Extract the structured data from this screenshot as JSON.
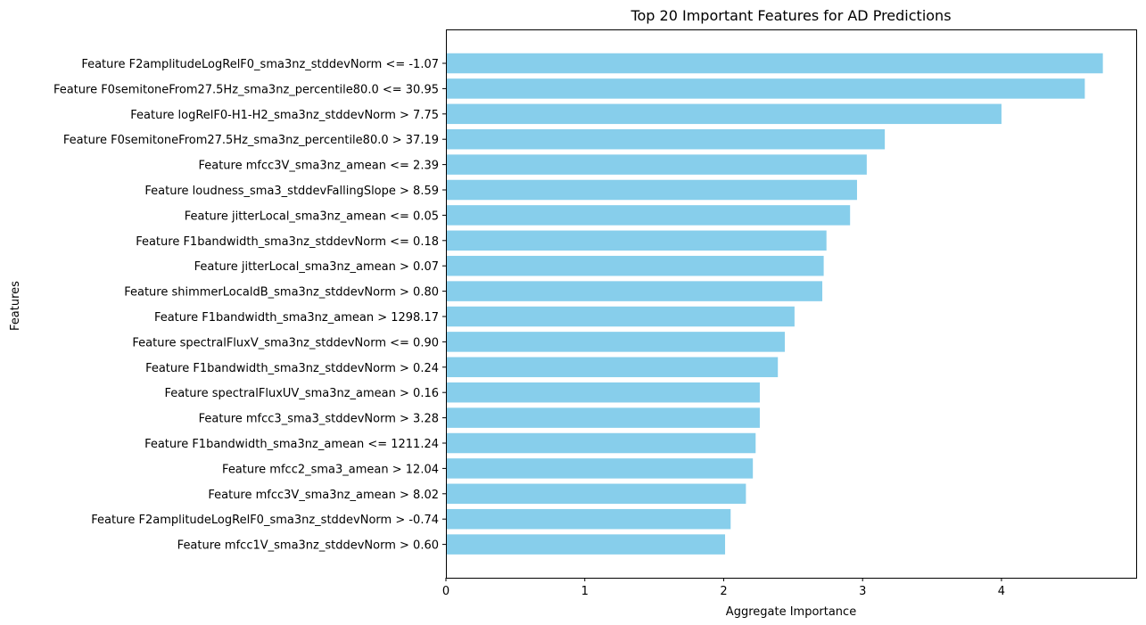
{
  "chart_data": {
    "type": "bar",
    "orientation": "horizontal",
    "title": "Top 20 Important Features for AD Predictions",
    "xlabel": "Aggregate Importance",
    "ylabel": "Features",
    "xlim": [
      0,
      4.97
    ],
    "xticks": [
      0,
      1,
      2,
      3,
      4
    ],
    "grid": false,
    "bar_color": "#87CEEB",
    "categories": [
      "Feature F2amplitudeLogRelF0_sma3nz_stddevNorm <= -1.07",
      "Feature F0semitoneFrom27.5Hz_sma3nz_percentile80.0 <= 30.95",
      "Feature logRelF0-H1-H2_sma3nz_stddevNorm > 7.75",
      "Feature F0semitoneFrom27.5Hz_sma3nz_percentile80.0 > 37.19",
      "Feature mfcc3V_sma3nz_amean <= 2.39",
      "Feature loudness_sma3_stddevFallingSlope > 8.59",
      "Feature jitterLocal_sma3nz_amean <= 0.05",
      "Feature F1bandwidth_sma3nz_stddevNorm <= 0.18",
      "Feature jitterLocal_sma3nz_amean > 0.07",
      "Feature shimmerLocaldB_sma3nz_stddevNorm > 0.80",
      "Feature F1bandwidth_sma3nz_amean > 1298.17",
      "Feature spectralFluxV_sma3nz_stddevNorm <= 0.90",
      "Feature F1bandwidth_sma3nz_stddevNorm > 0.24",
      "Feature spectralFluxUV_sma3nz_amean > 0.16",
      "Feature mfcc3_sma3_stddevNorm > 3.28",
      "Feature F1bandwidth_sma3nz_amean <= 1211.24",
      "Feature mfcc2_sma3_amean > 12.04",
      "Feature mfcc3V_sma3nz_amean > 8.02",
      "Feature F2amplitudeLogRelF0_sma3nz_stddevNorm > -0.74",
      "Feature mfcc1V_sma3nz_stddevNorm > 0.60"
    ],
    "values": [
      4.73,
      4.6,
      4.0,
      3.16,
      3.03,
      2.96,
      2.91,
      2.74,
      2.72,
      2.71,
      2.51,
      2.44,
      2.39,
      2.26,
      2.26,
      2.23,
      2.21,
      2.16,
      2.05,
      2.01
    ]
  }
}
